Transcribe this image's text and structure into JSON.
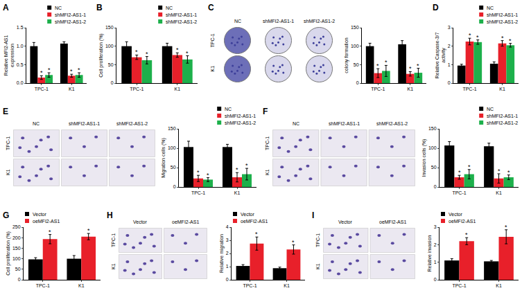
{
  "chart_data": [
    {
      "panel": "A",
      "type": "bar",
      "y_label": [
        "Relative MFI2-AS1",
        "expression"
      ],
      "categories": [
        "TPC-1",
        "K1"
      ],
      "ylim": [
        0,
        1.5
      ],
      "yticks": [
        {
          "value": 0,
          "label": "0.0"
        },
        0.5,
        {
          "value": 1,
          "label": "1.0"
        },
        1.5
      ],
      "grid": false,
      "legend": "top right",
      "series": [
        {
          "name": "NC",
          "color": "#000000",
          "values": [
            1.0,
            1.07
          ],
          "errors": [
            0.1,
            0.05
          ]
        },
        {
          "name": "shMFI2-AS1-1",
          "color": "#e8202a",
          "values": [
            0.15,
            0.2
          ],
          "errors": [
            0.05,
            0.04
          ],
          "marks": [
            "*",
            "*"
          ]
        },
        {
          "name": "shMFI2-AS1-2",
          "color": "#1db04b",
          "values": [
            0.22,
            0.22
          ],
          "errors": [
            0.06,
            0.06
          ],
          "marks": [
            "*",
            "*"
          ]
        }
      ]
    },
    {
      "panel": "B",
      "type": "bar",
      "y_label": [
        "Cell proliferation (%)"
      ],
      "categories": [
        "TPC-1",
        "K1"
      ],
      "ylim": [
        0,
        150
      ],
      "yticks": [
        0,
        50,
        100,
        150
      ],
      "grid": false,
      "legend": "top right",
      "series": [
        {
          "name": "NC",
          "color": "#000000",
          "values": [
            100,
            100
          ],
          "errors": [
            12,
            8
          ]
        },
        {
          "name": "shMFI2-AS1-1",
          "color": "#e8202a",
          "values": [
            70,
            76
          ],
          "errors": [
            6,
            6
          ],
          "marks": [
            "*",
            "*"
          ]
        },
        {
          "name": "shMFI2-AS1-2",
          "color": "#1db04b",
          "values": [
            62,
            64
          ],
          "errors": [
            10,
            10
          ],
          "marks": [
            "*",
            "*"
          ]
        }
      ]
    },
    {
      "type": "bar",
      "y_label": [
        "colony formation"
      ],
      "categories": [
        "TPC-1",
        "K1"
      ],
      "ylim": [
        0,
        150
      ],
      "yticks": [
        0,
        50,
        100,
        150
      ],
      "grid": false,
      "series": [
        {
          "name": "NC",
          "color": "#000000",
          "values": [
            100,
            105
          ],
          "errors": [
            8,
            10
          ]
        },
        {
          "name": "shMFI2-AS1-1",
          "color": "#e8202a",
          "values": [
            27,
            25
          ],
          "errors": [
            12,
            6
          ],
          "marks": [
            "*",
            "*"
          ]
        },
        {
          "name": "shMFI2-AS1-2",
          "color": "#1db04b",
          "values": [
            33,
            28
          ],
          "errors": [
            15,
            12
          ],
          "marks": [
            "*",
            "*"
          ]
        }
      ]
    },
    {
      "panel": "D",
      "type": "bar",
      "y_label": [
        "Relative Caspase-3/7",
        "activity"
      ],
      "categories": [
        "TPC-1",
        "K1"
      ],
      "ylim": [
        0,
        3
      ],
      "yticks": [
        0,
        1,
        2,
        3
      ],
      "grid": false,
      "legend": "top right",
      "series": [
        {
          "name": "NC",
          "color": "#000000",
          "values": [
            0.95,
            1.05
          ],
          "errors": [
            0.07,
            0.1
          ]
        },
        {
          "name": "shMFI2-AS1-1",
          "color": "#e8202a",
          "values": [
            2.25,
            2.15
          ],
          "errors": [
            0.18,
            0.15
          ],
          "marks": [
            "*",
            "*"
          ]
        },
        {
          "name": "shMFI2-AS1-2",
          "color": "#1db04b",
          "values": [
            2.22,
            2.05
          ],
          "errors": [
            0.12,
            0.1
          ],
          "marks": [
            "*",
            "*"
          ]
        }
      ]
    },
    {
      "type": "bar",
      "y_label": [
        "Migration cells (%)"
      ],
      "categories": [
        "TPC-1",
        "K1"
      ],
      "ylim": [
        0,
        150
      ],
      "yticks": [
        0,
        50,
        100,
        150
      ],
      "grid": false,
      "legend": "top right",
      "series": [
        {
          "name": "NC",
          "color": "#000000",
          "values": [
            103,
            103
          ],
          "errors": [
            15,
            7
          ]
        },
        {
          "name": "shMFI2-AS1-1",
          "color": "#e8202a",
          "values": [
            22,
            25
          ],
          "errors": [
            8,
            12
          ],
          "marks": [
            "*",
            "*"
          ]
        },
        {
          "name": "shMFI2-AS1-2",
          "color": "#1db04b",
          "values": [
            19,
            33
          ],
          "errors": [
            5,
            15
          ],
          "marks": [
            "*",
            "*"
          ]
        }
      ]
    },
    {
      "type": "bar",
      "y_label": [
        "Invasion cells (%)"
      ],
      "categories": [
        "TPC-1",
        "K1"
      ],
      "ylim": [
        0,
        150
      ],
      "yticks": [
        0,
        50,
        100,
        150
      ],
      "grid": false,
      "legend": "top right",
      "series": [
        {
          "name": "NC",
          "color": "#000000",
          "values": [
            107,
            105
          ],
          "errors": [
            10,
            8
          ]
        },
        {
          "name": "shMFI2-AS1-1",
          "color": "#e8202a",
          "values": [
            25,
            22
          ],
          "errors": [
            5,
            12
          ],
          "marks": [
            "*",
            "*"
          ]
        },
        {
          "name": "shMFI2-AS1-2",
          "color": "#1db04b",
          "values": [
            33,
            25
          ],
          "errors": [
            12,
            6
          ],
          "marks": [
            "*",
            "*"
          ]
        }
      ]
    },
    {
      "panel": "G",
      "type": "bar",
      "y_label": [
        "Cell proliferation (%)"
      ],
      "categories": [
        "TPC-1",
        "K1"
      ],
      "ylim": [
        0,
        250
      ],
      "yticks": [
        0,
        50,
        100,
        150,
        200,
        250
      ],
      "grid": false,
      "legend": "top left",
      "series": [
        {
          "name": "Vector",
          "color": "#000000",
          "values": [
            97,
            100
          ],
          "errors": [
            8,
            15
          ]
        },
        {
          "name": "oeMFI2-AS1",
          "color": "#e8202a",
          "values": [
            193,
            205
          ],
          "errors": [
            22,
            15
          ],
          "marks": [
            "*",
            "*"
          ]
        }
      ]
    },
    {
      "type": "bar",
      "y_label": [
        "Relative migration"
      ],
      "categories": [
        "TPC-1",
        "K1"
      ],
      "ylim": [
        0,
        4
      ],
      "yticks": [
        0,
        1,
        2,
        3,
        4
      ],
      "grid": false,
      "legend": "top left",
      "series": [
        {
          "name": "Vector",
          "color": "#000000",
          "values": [
            1.05,
            0.88
          ],
          "errors": [
            0.1,
            0.08
          ]
        },
        {
          "name": "oeMFI2-AS1",
          "color": "#e8202a",
          "values": [
            2.75,
            2.3
          ],
          "errors": [
            0.5,
            0.35
          ],
          "marks": [
            "*",
            "*"
          ]
        }
      ]
    },
    {
      "type": "bar",
      "y_label": [
        "Relative invasion"
      ],
      "categories": [
        "TPC-1",
        "K1"
      ],
      "ylim": [
        0,
        3
      ],
      "yticks": [
        0,
        1,
        2,
        3
      ],
      "grid": false,
      "legend": "top left",
      "series": [
        {
          "name": "Vector",
          "color": "#000000",
          "values": [
            1.1,
            1.05
          ],
          "errors": [
            0.1,
            0.05
          ]
        },
        {
          "name": "oeMFI2-AS1",
          "color": "#e8202a",
          "values": [
            2.2,
            2.45
          ],
          "errors": [
            0.2,
            0.4
          ],
          "marks": [
            "*",
            "*"
          ]
        }
      ]
    }
  ],
  "image_panels": [
    {
      "panel": "C",
      "type": "dish",
      "columns": [
        "NC",
        "shMFI2-AS1-1",
        "shMFI2-AS1-2"
      ],
      "rows": [
        "TPC-1",
        "K1"
      ]
    },
    {
      "panel": "E",
      "type": "micrograph",
      "columns": [
        "NC",
        "shMFI2-AS1-1",
        "shMFI2-AS1-2"
      ],
      "rows": [
        "TPC-1",
        "K1"
      ]
    },
    {
      "panel": "F",
      "type": "micrograph",
      "columns": [
        "NC",
        "shMFI2-AS1-1",
        "shMFI2-AS1-2"
      ],
      "rows": [
        "TPC-1",
        "K1"
      ]
    },
    {
      "panel": "H",
      "type": "micrograph",
      "columns": [
        "Vector",
        "oeMFI2-AS1"
      ],
      "rows": [
        "TPC-1",
        "K1"
      ]
    },
    {
      "panel": "I",
      "type": "micrograph",
      "columns": [
        "Vector",
        "oeMFI2-AS1"
      ],
      "rows": [
        "TPC-1",
        "K1"
      ]
    }
  ]
}
